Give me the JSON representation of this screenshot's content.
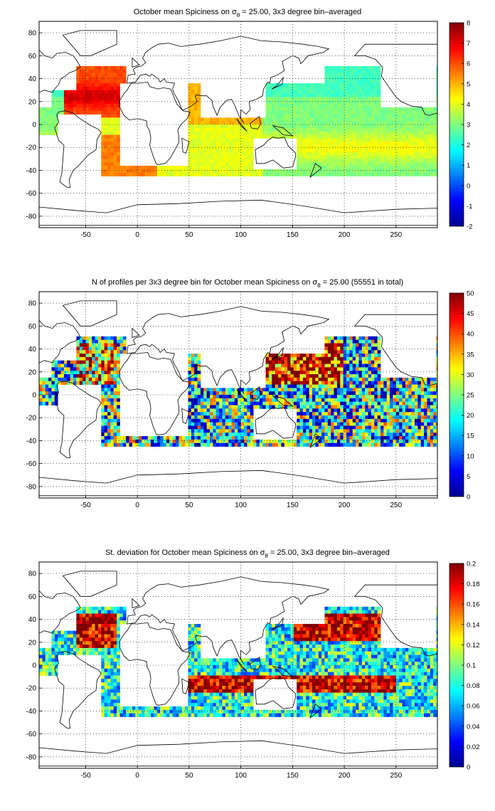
{
  "chart_data": [
    {
      "type": "heatmap",
      "title": "October mean Spiciness on σθ = 25.00, 3x3 degree bin–averaged",
      "title_parts": {
        "pre": "October mean Spiciness on σ",
        "sub": "θ",
        "post": " = 25.00, 3x3 degree bin–averaged"
      },
      "x_ticks": [
        "-50",
        "0",
        "50",
        "100",
        "150",
        "200",
        "250"
      ],
      "y_ticks": [
        "80",
        "60",
        "40",
        "20",
        "0",
        "-20",
        "-40",
        "-60",
        "-80"
      ],
      "xlim": [
        -95,
        290
      ],
      "ylim": [
        -90,
        90
      ],
      "grid": true,
      "colorbar": {
        "min": -2,
        "max": 8,
        "ticks": [
          "8",
          "7",
          "6",
          "5",
          "4",
          "3",
          "2",
          "1",
          "0",
          "-1",
          "-2"
        ]
      }
    },
    {
      "type": "heatmap",
      "title": "N of profiles per 3x3 degree bin for October mean Spiciness on σθ = 25.00 (55551 in total)",
      "title_parts": {
        "pre": "N of profiles per 3x3 degree bin for October mean Spiciness on σ",
        "sub": "θ",
        "post": " = 25.00 (55551 in total)"
      },
      "x_ticks": [
        "-50",
        "0",
        "50",
        "100",
        "150",
        "200",
        "250"
      ],
      "y_ticks": [
        "80",
        "60",
        "40",
        "20",
        "0",
        "-20",
        "-40",
        "-60",
        "-80"
      ],
      "xlim": [
        -95,
        290
      ],
      "ylim": [
        -90,
        90
      ],
      "grid": true,
      "colorbar": {
        "min": 0,
        "max": 50,
        "ticks": [
          "50",
          "45",
          "40",
          "35",
          "30",
          "25",
          "20",
          "15",
          "10",
          "5",
          "0"
        ]
      }
    },
    {
      "type": "heatmap",
      "title": "St. deviation for October mean Spiciness on σθ = 25.00, 3x3 degree bin–averaged",
      "title_parts": {
        "pre": "St. deviation for October mean Spiciness on σ",
        "sub": "θ",
        "post": " = 25.00, 3x3 degree bin–averaged"
      },
      "x_ticks": [
        "-50",
        "0",
        "50",
        "100",
        "150",
        "200",
        "250"
      ],
      "y_ticks": [
        "80",
        "60",
        "40",
        "20",
        "0",
        "-20",
        "-40",
        "-60",
        "-80"
      ],
      "xlim": [
        -95,
        290
      ],
      "ylim": [
        -90,
        90
      ],
      "grid": true,
      "colorbar": {
        "min": 0,
        "max": 0.2,
        "ticks": [
          "0.2",
          "0.18",
          "0.16",
          "0.14",
          "0.12",
          "0.1",
          "0.08",
          "0.06",
          "0.04",
          "0.02",
          "0"
        ]
      }
    }
  ],
  "colors": {
    "colormap": "jet",
    "land_outline": "#000000",
    "grid": "#000000",
    "background": "#ffffff"
  }
}
